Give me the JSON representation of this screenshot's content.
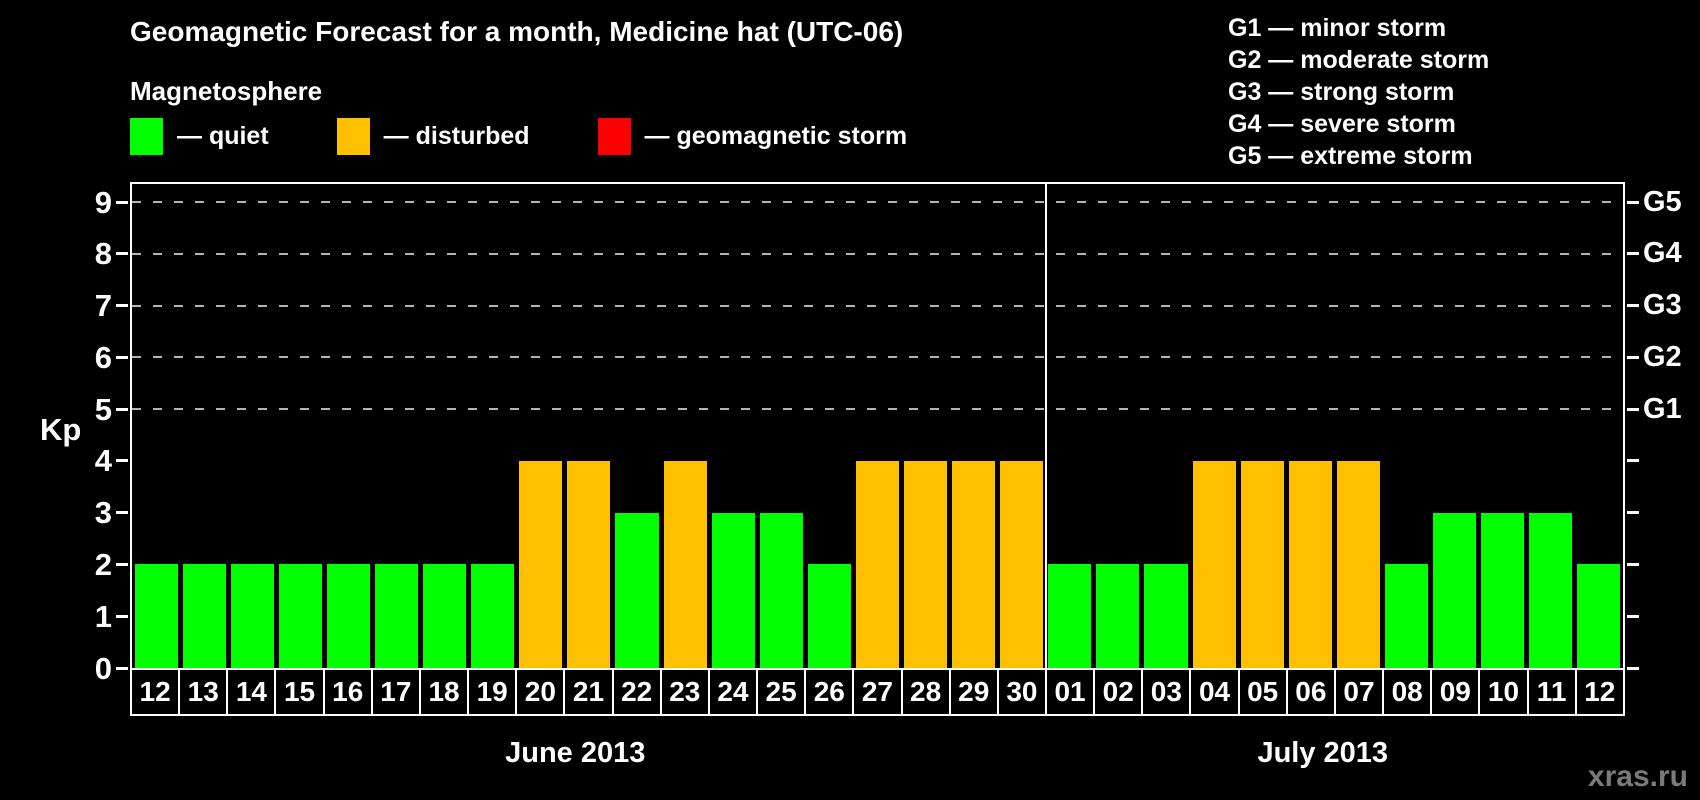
{
  "header": {
    "title": "Geomagnetic Forecast for a month, Medicine hat (UTC-06)",
    "subtitle": "Magnetosphere",
    "legend": [
      {
        "name": "quiet",
        "label": "— quiet",
        "color": "#00ff00"
      },
      {
        "name": "disturbed",
        "label": "— disturbed",
        "color": "#ffc000"
      },
      {
        "name": "storm",
        "label": "— geomagnetic storm",
        "color": "#ff0000"
      }
    ],
    "storm_scale": [
      "G1 — minor storm",
      "G2 — moderate storm",
      "G3 — strong storm",
      "G4 — severe storm",
      "G5 — extreme storm"
    ]
  },
  "watermark": "xras.ru",
  "chart_data": {
    "type": "bar",
    "title": "Geomagnetic Forecast for a month, Medicine hat (UTC-06)",
    "ylabel": "Kp",
    "ylim": [
      0,
      9.35
    ],
    "yticks": [
      0,
      1,
      2,
      3,
      4,
      5,
      6,
      7,
      8,
      9
    ],
    "gridlines_at": [
      5,
      6,
      7,
      8,
      9
    ],
    "grid_style": "dashed",
    "grid_color": "#b3b3b3",
    "legend_position": "top",
    "right_axis": [
      {
        "label": "G1",
        "kp": 5
      },
      {
        "label": "G2",
        "kp": 6
      },
      {
        "label": "G3",
        "kp": 7
      },
      {
        "label": "G4",
        "kp": 8
      },
      {
        "label": "G5",
        "kp": 9
      }
    ],
    "state_colors": {
      "quiet": "#00ff00",
      "disturbed": "#ffc000",
      "storm": "#ff0000"
    },
    "months": [
      {
        "label": "June 2013",
        "days": [
          {
            "day": "12",
            "kp": 2,
            "state": "quiet"
          },
          {
            "day": "13",
            "kp": 2,
            "state": "quiet"
          },
          {
            "day": "14",
            "kp": 2,
            "state": "quiet"
          },
          {
            "day": "15",
            "kp": 2,
            "state": "quiet"
          },
          {
            "day": "16",
            "kp": 2,
            "state": "quiet"
          },
          {
            "day": "17",
            "kp": 2,
            "state": "quiet"
          },
          {
            "day": "18",
            "kp": 2,
            "state": "quiet"
          },
          {
            "day": "19",
            "kp": 2,
            "state": "quiet"
          },
          {
            "day": "20",
            "kp": 4,
            "state": "disturbed"
          },
          {
            "day": "21",
            "kp": 4,
            "state": "disturbed"
          },
          {
            "day": "22",
            "kp": 3,
            "state": "quiet"
          },
          {
            "day": "23",
            "kp": 4,
            "state": "disturbed"
          },
          {
            "day": "24",
            "kp": 3,
            "state": "quiet"
          },
          {
            "day": "25",
            "kp": 3,
            "state": "quiet"
          },
          {
            "day": "26",
            "kp": 2,
            "state": "quiet"
          },
          {
            "day": "27",
            "kp": 4,
            "state": "disturbed"
          },
          {
            "day": "28",
            "kp": 4,
            "state": "disturbed"
          },
          {
            "day": "29",
            "kp": 4,
            "state": "disturbed"
          },
          {
            "day": "30",
            "kp": 4,
            "state": "disturbed"
          }
        ]
      },
      {
        "label": "July 2013",
        "days": [
          {
            "day": "01",
            "kp": 2,
            "state": "quiet"
          },
          {
            "day": "02",
            "kp": 2,
            "state": "quiet"
          },
          {
            "day": "03",
            "kp": 2,
            "state": "quiet"
          },
          {
            "day": "04",
            "kp": 4,
            "state": "disturbed"
          },
          {
            "day": "05",
            "kp": 4,
            "state": "disturbed"
          },
          {
            "day": "06",
            "kp": 4,
            "state": "disturbed"
          },
          {
            "day": "07",
            "kp": 4,
            "state": "disturbed"
          },
          {
            "day": "08",
            "kp": 2,
            "state": "quiet"
          },
          {
            "day": "09",
            "kp": 3,
            "state": "quiet"
          },
          {
            "day": "10",
            "kp": 3,
            "state": "quiet"
          },
          {
            "day": "11",
            "kp": 3,
            "state": "quiet"
          },
          {
            "day": "12",
            "kp": 2,
            "state": "quiet"
          }
        ]
      }
    ]
  }
}
